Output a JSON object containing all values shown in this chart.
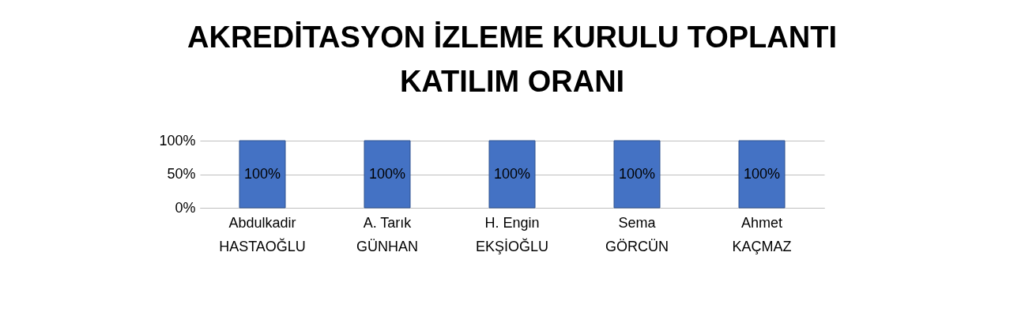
{
  "chart_data": {
    "type": "bar",
    "title": "AKREDİTASYON İZLEME KURULU TOPLANTI\nKATILIM ORANI",
    "categories": [
      "Abdulkadir\nHASTAOĞLU",
      "A. Tarık\nGÜNHAN",
      "H. Engin\nEKŞİOĞLU",
      "Sema\nGÖRCÜN",
      "Ahmet\nKAÇMAZ"
    ],
    "values": [
      100,
      100,
      100,
      100,
      100
    ],
    "value_labels": [
      "100%",
      "100%",
      "100%",
      "100%",
      "100%"
    ],
    "color": "#4472c4",
    "ylim": [
      0,
      100
    ],
    "yticks": [
      {
        "value": 0,
        "label": "0%"
      },
      {
        "value": 50,
        "label": "50%"
      },
      {
        "value": 100,
        "label": "100%"
      }
    ],
    "grid": "y"
  }
}
